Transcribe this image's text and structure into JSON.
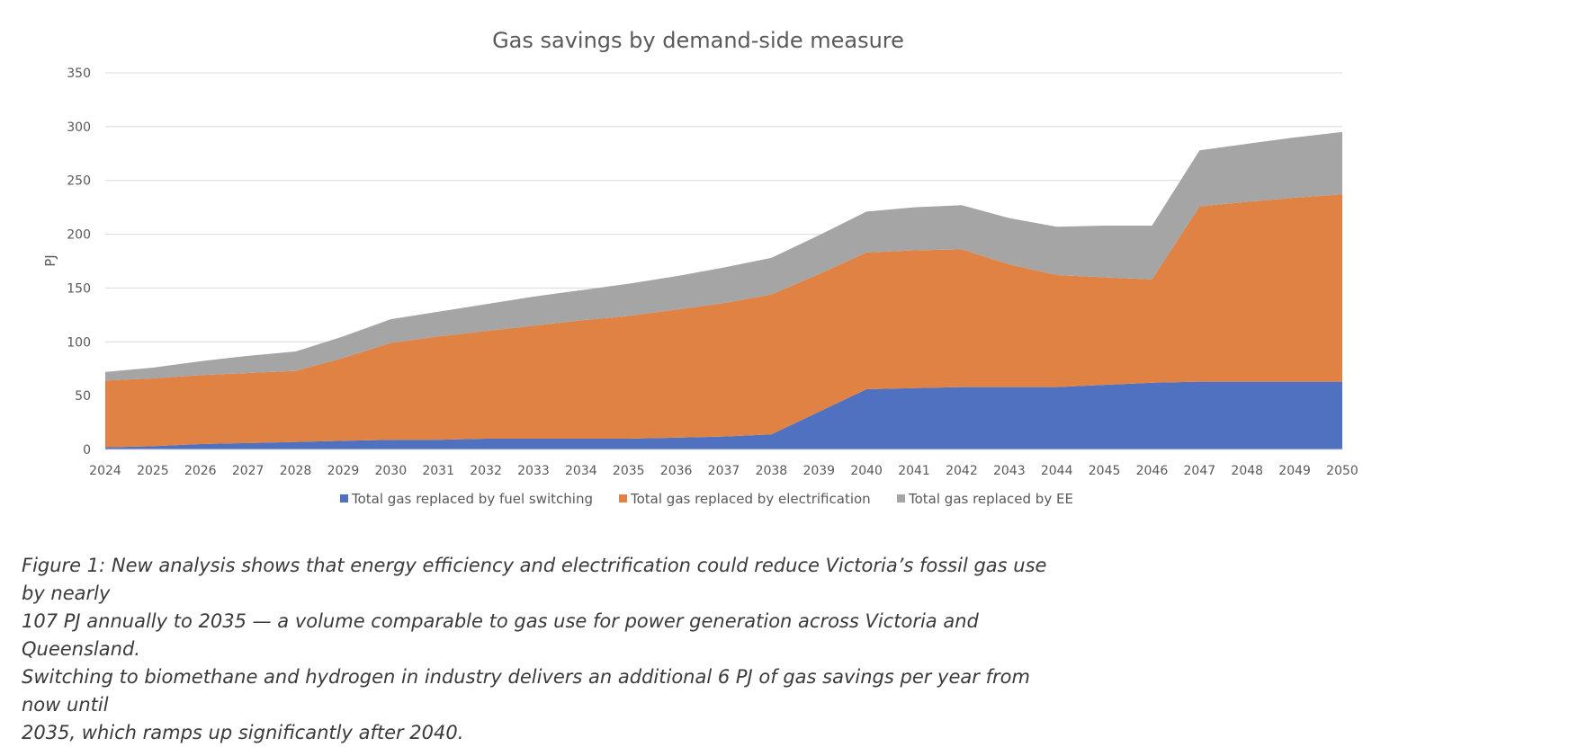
{
  "chart_data": {
    "type": "area",
    "stacked": true,
    "title": "Gas savings by demand-side measure",
    "xlabel": "",
    "ylabel": "PJ",
    "ylim": [
      0,
      350
    ],
    "yticks": [
      0,
      50,
      100,
      150,
      200,
      250,
      300,
      350
    ],
    "grid": true,
    "legend_position": "bottom",
    "x": [
      "2024",
      "2025",
      "2026",
      "2027",
      "2028",
      "2029",
      "2030",
      "2031",
      "2032",
      "2033",
      "2034",
      "2035",
      "2036",
      "2037",
      "2038",
      "2039",
      "2040",
      "2041",
      "2042",
      "2043",
      "2044",
      "2045",
      "2046",
      "2047",
      "2048",
      "2049",
      "2050"
    ],
    "series": [
      {
        "name": "Total gas replaced by fuel switching",
        "color": "#4f71bf",
        "values": [
          2,
          3,
          5,
          6,
          7,
          8,
          9,
          9,
          10,
          10,
          10,
          10,
          11,
          12,
          14,
          35,
          56,
          57,
          58,
          58,
          58,
          60,
          62,
          63,
          63,
          63,
          63
        ]
      },
      {
        "name": "Total gas replaced by electrification",
        "color": "#df8244",
        "values": [
          62,
          63,
          64,
          65,
          66,
          77,
          90,
          96,
          100,
          105,
          110,
          114,
          119,
          124,
          130,
          128,
          127,
          128,
          128,
          114,
          104,
          100,
          96,
          163,
          167,
          171,
          174
        ]
      },
      {
        "name": "Total gas replaced by EE",
        "color": "#a5a5a5",
        "values": [
          8,
          10,
          13,
          16,
          18,
          20,
          22,
          23,
          25,
          27,
          28,
          30,
          31,
          33,
          34,
          36,
          38,
          40,
          41,
          43,
          45,
          48,
          50,
          52,
          54,
          56,
          58
        ]
      }
    ]
  },
  "caption": {
    "line1": "Figure 1: New analysis shows that energy efficiency and electrification could reduce Victoria’s fossil gas use by nearly",
    "line2": "107 PJ annually to 2035 — a volume comparable to gas use for power generation across Victoria and Queensland.",
    "line3": "Switching to biomethane and hydrogen in industry delivers an additional 6 PJ of gas savings per year from now until",
    "line4": "2035, which ramps up significantly after 2040."
  }
}
